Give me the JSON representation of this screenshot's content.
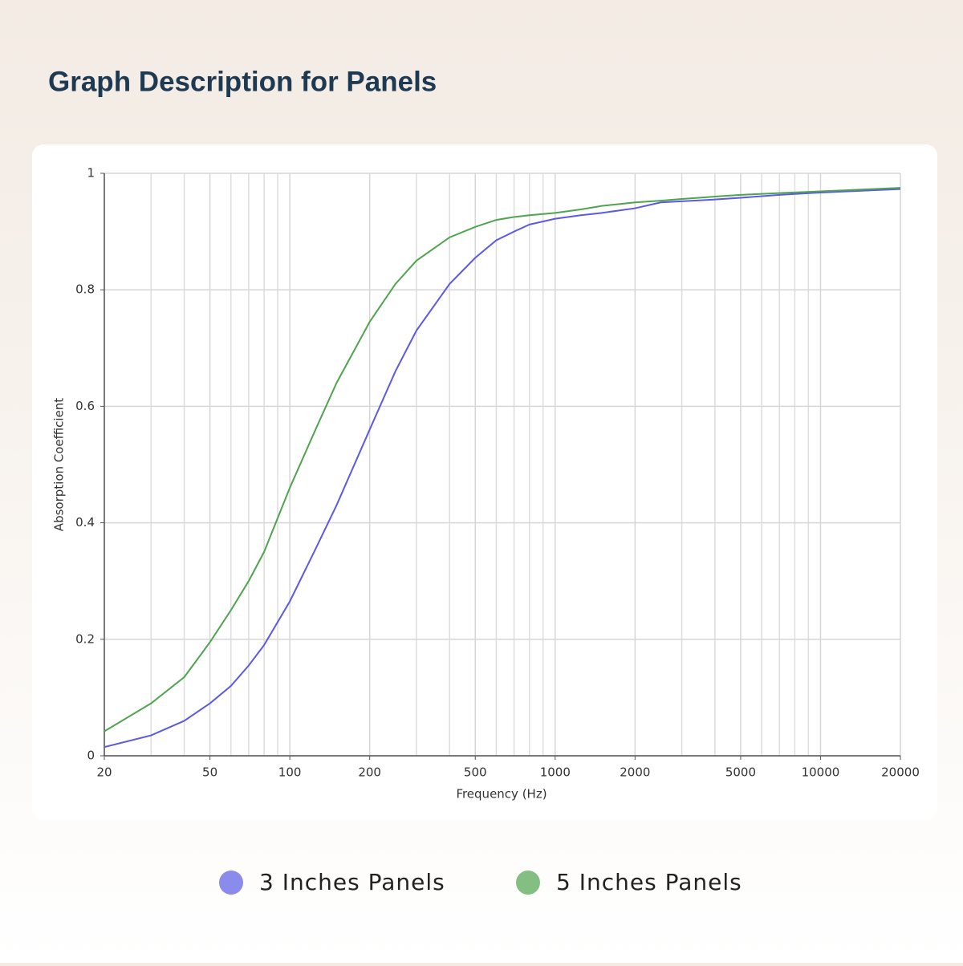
{
  "chart_data": {
    "type": "line",
    "title": "Graph Description for Panels",
    "xlabel": "Frequency (Hz)",
    "ylabel": "Absorption Coefficient",
    "xscale": "log",
    "grid": true,
    "x": [
      20,
      30,
      40,
      50,
      60,
      70,
      80,
      100,
      125,
      150,
      200,
      250,
      300,
      400,
      500,
      600,
      700,
      800,
      1000,
      1250,
      1500,
      2000,
      2500,
      3000,
      4000,
      5000,
      7000,
      10000,
      20000
    ],
    "series": [
      {
        "name": "3 Inches Panels",
        "color": "#5a5ae6",
        "values": [
          0.015,
          0.035,
          0.06,
          0.09,
          0.12,
          0.155,
          0.19,
          0.265,
          0.355,
          0.43,
          0.56,
          0.66,
          0.73,
          0.81,
          0.855,
          0.885,
          0.9,
          0.912,
          0.922,
          0.928,
          0.932,
          0.94,
          0.95,
          0.952,
          0.955,
          0.958,
          0.963,
          0.967,
          0.973
        ]
      },
      {
        "name": "5 Inches Panels",
        "color": "#4fa44f",
        "values": [
          0.042,
          0.09,
          0.135,
          0.195,
          0.25,
          0.3,
          0.35,
          0.46,
          0.56,
          0.64,
          0.745,
          0.81,
          0.85,
          0.89,
          0.908,
          0.92,
          0.925,
          0.928,
          0.932,
          0.938,
          0.944,
          0.95,
          0.953,
          0.956,
          0.96,
          0.963,
          0.966,
          0.969,
          0.975
        ]
      }
    ],
    "xlim": [
      20,
      20000
    ],
    "xticks": [
      20,
      50,
      100,
      200,
      500,
      1000,
      2000,
      5000,
      10000,
      20000
    ],
    "xminorticks": [
      30,
      40,
      60,
      70,
      80,
      90,
      300,
      400,
      600,
      700,
      800,
      900,
      3000,
      4000,
      6000,
      7000,
      8000,
      9000
    ],
    "ylim": [
      0,
      1
    ],
    "yticks": [
      0,
      0.2,
      0.4,
      0.6,
      0.8,
      1
    ]
  }
}
